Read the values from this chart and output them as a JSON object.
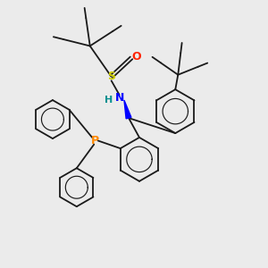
{
  "background_color": "#ebebeb",
  "line_color": "#1a1a1a",
  "line_width": 1.3,
  "S_color": "#cccc00",
  "N_color": "#0000ff",
  "O_color": "#ff2200",
  "P_color": "#ff8800",
  "H_color": "#009090",
  "figsize": [
    3.0,
    3.0
  ],
  "dpi": 100,
  "xlim": [
    0,
    10
  ],
  "ylim": [
    0,
    10
  ]
}
